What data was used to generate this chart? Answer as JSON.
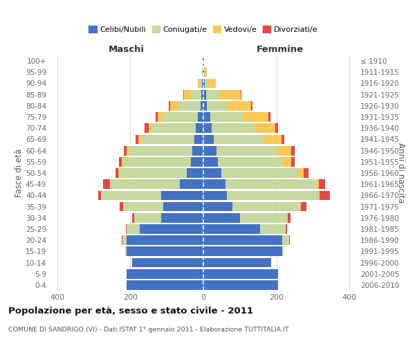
{
  "age_groups": [
    "0-4",
    "5-9",
    "10-14",
    "15-19",
    "20-24",
    "25-29",
    "30-34",
    "35-39",
    "40-44",
    "45-49",
    "50-54",
    "55-59",
    "60-64",
    "65-69",
    "70-74",
    "75-79",
    "80-84",
    "85-89",
    "90-94",
    "95-99",
    "100+"
  ],
  "birth_years": [
    "2006-2010",
    "2001-2005",
    "1996-2000",
    "1991-1995",
    "1986-1990",
    "1981-1985",
    "1976-1980",
    "1971-1975",
    "1966-1970",
    "1961-1965",
    "1956-1960",
    "1951-1955",
    "1946-1950",
    "1941-1945",
    "1936-1940",
    "1931-1935",
    "1926-1930",
    "1921-1925",
    "1916-1920",
    "1911-1915",
    "≤ 1910"
  ],
  "males": {
    "celibe": [
      210,
      210,
      195,
      210,
      210,
      175,
      115,
      110,
      115,
      65,
      45,
      35,
      30,
      25,
      20,
      15,
      8,
      5,
      3,
      1,
      1
    ],
    "coniugato": [
      0,
      0,
      0,
      3,
      12,
      35,
      75,
      110,
      165,
      190,
      185,
      185,
      175,
      145,
      120,
      95,
      60,
      30,
      8,
      2,
      0
    ],
    "vedovo": [
      0,
      0,
      0,
      0,
      0,
      0,
      0,
      0,
      0,
      1,
      2,
      3,
      5,
      8,
      10,
      15,
      22,
      18,
      4,
      1,
      0
    ],
    "divorziato": [
      0,
      0,
      0,
      0,
      1,
      2,
      5,
      8,
      8,
      18,
      8,
      8,
      8,
      8,
      10,
      5,
      4,
      1,
      0,
      0,
      0
    ]
  },
  "females": {
    "nubile": [
      205,
      205,
      185,
      215,
      215,
      155,
      100,
      80,
      65,
      60,
      50,
      40,
      35,
      28,
      22,
      18,
      10,
      8,
      4,
      2,
      1
    ],
    "coniugata": [
      0,
      0,
      0,
      5,
      20,
      70,
      130,
      185,
      250,
      250,
      210,
      175,
      165,
      135,
      115,
      90,
      55,
      35,
      10,
      2,
      0
    ],
    "vedova": [
      0,
      0,
      0,
      0,
      0,
      0,
      0,
      1,
      3,
      5,
      15,
      25,
      40,
      50,
      60,
      70,
      65,
      60,
      20,
      5,
      0
    ],
    "divorziata": [
      0,
      0,
      0,
      0,
      1,
      3,
      8,
      15,
      28,
      18,
      12,
      10,
      10,
      8,
      8,
      5,
      5,
      1,
      0,
      0,
      0
    ]
  },
  "colors": {
    "celibe": "#4472C4",
    "coniugato": "#C5D9A0",
    "vedovo": "#FAC858",
    "divorziato": "#E84444"
  },
  "legend_labels": [
    "Celibi/Nubili",
    "Coniugati/e",
    "Vedovi/e",
    "Divorziati/e"
  ],
  "title": "Popolazione per età, sesso e stato civile - 2011",
  "subtitle": "COMUNE DI SANDRIGO (VI) - Dati ISTAT 1° gennaio 2011 - Elaborazione TUTTITALIA.IT",
  "xlabel_left": "Maschi",
  "xlabel_right": "Femmine",
  "ylabel_left": "Fasce di età",
  "ylabel_right": "Anni di nascita",
  "xlim": 420,
  "background_color": "#ffffff",
  "grid_color": "#cccccc"
}
